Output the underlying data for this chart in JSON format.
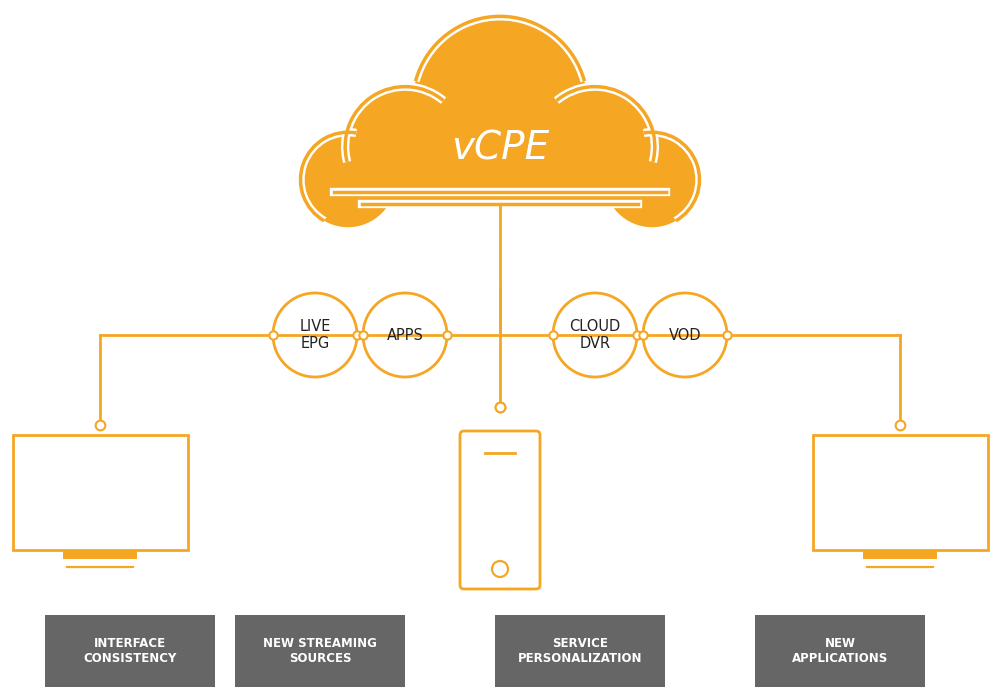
{
  "orange": "#F5A623",
  "gray_box": "#666666",
  "white": "#FFFFFF",
  "bg_color": "#FFFFFF",
  "vcpe_text": "vCPE",
  "circle_labels": [
    "LIVE\nEPG",
    "APPS",
    "CLOUD\nDVR",
    "VOD"
  ],
  "bottom_labels": [
    "INTERFACE\nCONSISTENCY",
    "NEW STREAMING\nSOURCES",
    "SERVICE\nPERSONALIZATION",
    "NEW\nAPPLICATIONS"
  ],
  "figsize": [
    10.0,
    6.95
  ],
  "dpi": 100
}
